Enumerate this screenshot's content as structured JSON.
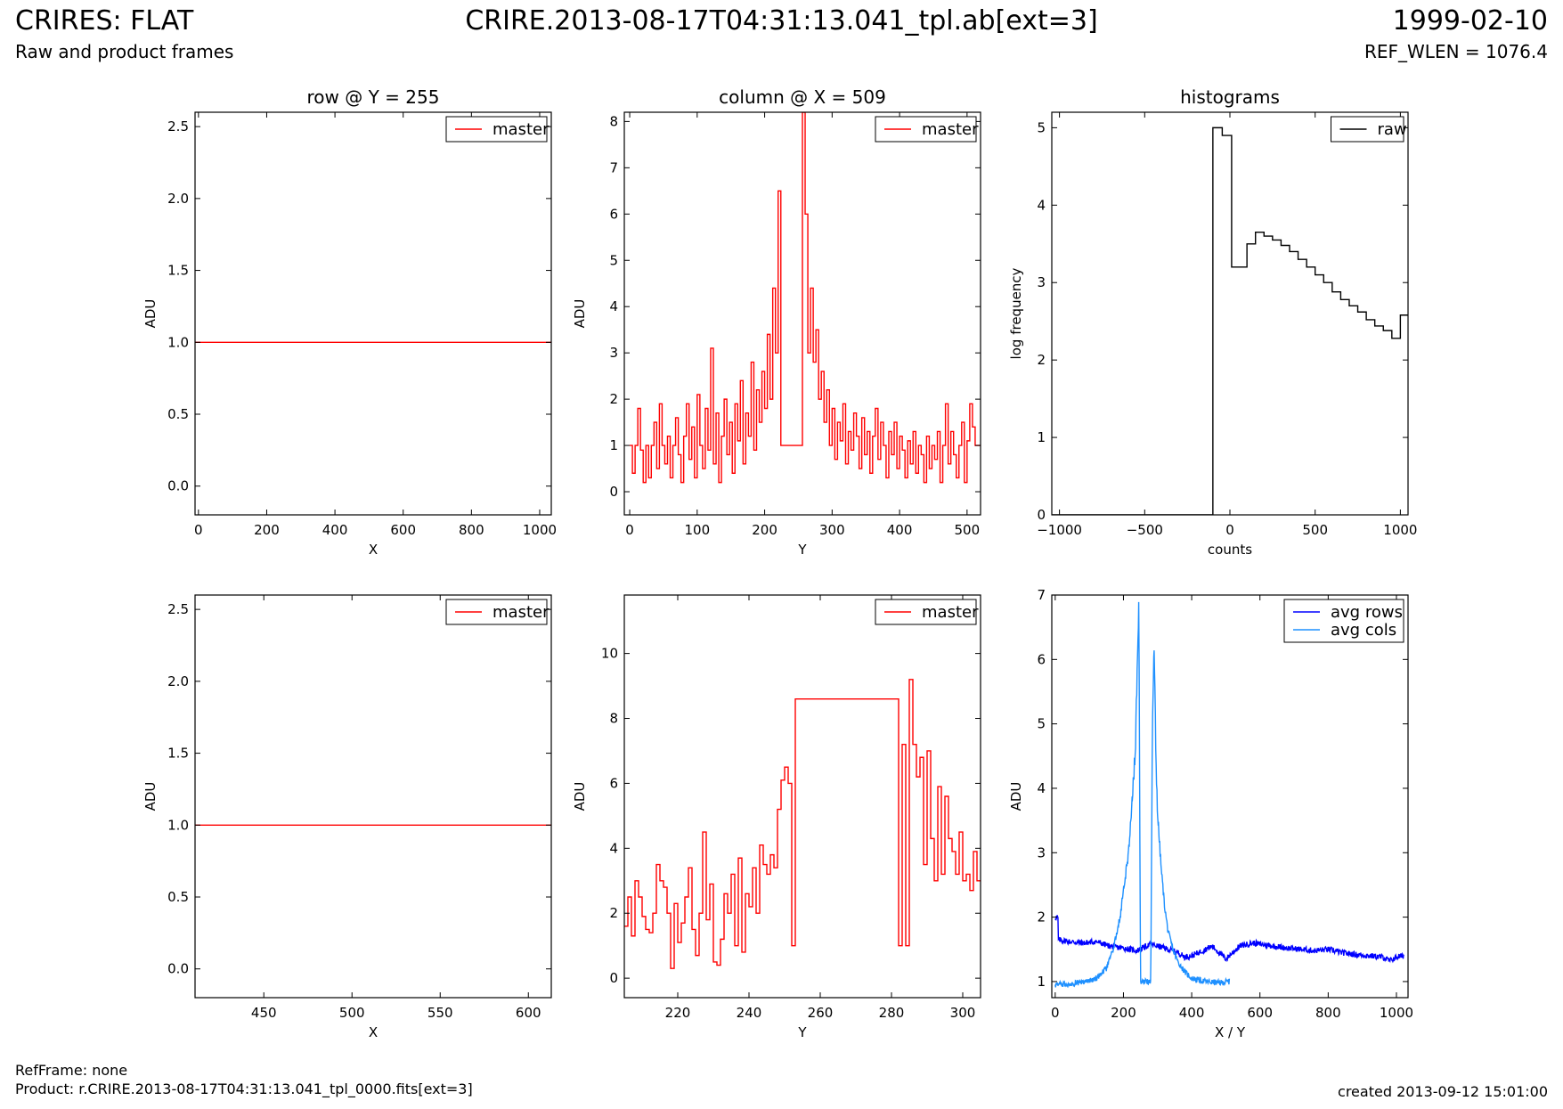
{
  "header": {
    "title_left": "CRIRES: FLAT",
    "subtitle_left": "Raw and product frames",
    "title_center": "CRIRE.2013-08-17T04:31:13.041_tpl.ab[ext=3]",
    "title_right": "1999-02-10",
    "subtitle_right": "REF_WLEN = 1076.4"
  },
  "footer": {
    "refframe": "RefFrame: none",
    "product": "Product: r.CRIRE.2013-08-17T04:31:13.041_tpl_0000.fits[ext=3]",
    "created": "created 2013-09-12 15:01:00"
  },
  "colors": {
    "red": "#ff0000",
    "black": "#000000",
    "blue": "#0000ff",
    "light_blue": "#1e90ff"
  },
  "chart_data": [
    {
      "type": "line",
      "title": "row @ Y = 255",
      "xlabel": "X",
      "ylabel": "ADU",
      "xlim": [
        -10,
        1034
      ],
      "ylim": [
        -0.2,
        2.6
      ],
      "xticks": [
        0,
        200,
        400,
        600,
        800,
        1000
      ],
      "xticklabels": [
        "0",
        "200",
        "400",
        "600",
        "800",
        "1000"
      ],
      "yticks": [
        0,
        0.5,
        1,
        1.5,
        2,
        2.5
      ],
      "yticklabels": [
        "0.0",
        "0.5",
        "1.0",
        "1.5",
        "2.0",
        "2.5"
      ],
      "legend_position": "upper-right",
      "series": [
        {
          "name": "master",
          "color": "#ff0000",
          "style": "line",
          "x": [
            -10,
            1034
          ],
          "y": [
            1.0,
            1.0
          ]
        }
      ]
    },
    {
      "type": "line",
      "title": "column @ X = 509",
      "xlabel": "Y",
      "ylabel": "ADU",
      "xlim": [
        -8,
        520
      ],
      "ylim": [
        -0.5,
        8.2
      ],
      "xticks": [
        0,
        100,
        200,
        300,
        400,
        500
      ],
      "xticklabels": [
        "0",
        "100",
        "200",
        "300",
        "400",
        "500"
      ],
      "yticks": [
        0,
        1,
        2,
        3,
        4,
        5,
        6,
        7,
        8
      ],
      "yticklabels": [
        "0",
        "1",
        "2",
        "3",
        "4",
        "5",
        "6",
        "7",
        "8"
      ],
      "legend_position": "upper-right",
      "series": [
        {
          "name": "master",
          "color": "#ff0000",
          "style": "steps",
          "x": [
            0,
            4,
            8,
            12,
            16,
            20,
            24,
            28,
            32,
            36,
            40,
            44,
            48,
            52,
            56,
            60,
            64,
            68,
            72,
            76,
            80,
            84,
            88,
            92,
            96,
            100,
            104,
            108,
            112,
            116,
            120,
            124,
            128,
            132,
            136,
            140,
            144,
            148,
            152,
            156,
            160,
            164,
            168,
            172,
            176,
            180,
            184,
            188,
            192,
            196,
            200,
            204,
            208,
            212,
            216,
            220,
            224,
            228,
            232,
            236,
            240,
            244,
            248,
            252,
            256,
            260,
            264,
            268,
            272,
            276,
            280,
            284,
            288,
            292,
            296,
            300,
            304,
            308,
            312,
            316,
            320,
            324,
            328,
            332,
            336,
            340,
            344,
            348,
            352,
            356,
            360,
            364,
            368,
            372,
            376,
            380,
            384,
            388,
            392,
            396,
            400,
            404,
            408,
            412,
            416,
            420,
            424,
            428,
            432,
            436,
            440,
            444,
            448,
            452,
            456,
            460,
            464,
            468,
            472,
            476,
            480,
            484,
            488,
            492,
            496,
            500,
            504,
            508,
            512
          ],
          "y": [
            1.0,
            0.4,
            1.0,
            1.8,
            0.9,
            0.2,
            1.0,
            0.3,
            1.0,
            1.5,
            0.5,
            1.9,
            1.0,
            0.6,
            1.2,
            0.3,
            1.0,
            1.6,
            0.8,
            0.2,
            1.2,
            1.9,
            0.7,
            1.4,
            0.3,
            2.1,
            1.0,
            0.5,
            1.8,
            0.9,
            3.1,
            0.6,
            1.7,
            0.2,
            1.2,
            2.0,
            0.8,
            1.5,
            0.4,
            1.9,
            1.1,
            2.4,
            0.6,
            1.7,
            1.2,
            2.8,
            0.9,
            2.2,
            1.5,
            2.6,
            1.8,
            3.4,
            2.0,
            4.4,
            3.0,
            6.5,
            1.0,
            1.0,
            1.0,
            1.0,
            1.0,
            1.0,
            1.0,
            1.0,
            8.2,
            6.0,
            3.0,
            4.4,
            2.8,
            3.5,
            2.0,
            2.6,
            1.5,
            2.2,
            1.0,
            1.8,
            0.7,
            1.5,
            1.1,
            1.9,
            0.6,
            1.3,
            0.9,
            1.7,
            1.2,
            0.5,
            1.6,
            0.8,
            1.3,
            0.4,
            1.2,
            1.8,
            0.7,
            1.5,
            1.0,
            0.3,
            1.3,
            0.8,
            1.5,
            0.5,
            1.2,
            0.9,
            0.3,
            1.1,
            0.6,
            1.3,
            0.4,
            1.0,
            0.8,
            0.2,
            1.2,
            0.5,
            1.0,
            0.7,
            1.3,
            0.2,
            1.0,
            1.9,
            0.6,
            1.3,
            0.8,
            0.3,
            1.0,
            1.5,
            0.2,
            1.1,
            1.9,
            1.4,
            1.0
          ]
        }
      ]
    },
    {
      "type": "line",
      "title": "histograms",
      "xlabel": "counts",
      "ylabel": "log frequency",
      "xlim": [
        -1045,
        1045
      ],
      "ylim": [
        0,
        5.2
      ],
      "xticks": [
        -1000,
        -500,
        0,
        500,
        1000
      ],
      "xticklabels": [
        "−1000",
        "−500",
        "0",
        "500",
        "1000"
      ],
      "yticks": [
        0,
        1,
        2,
        3,
        4,
        5
      ],
      "yticklabels": [
        "0",
        "1",
        "2",
        "3",
        "4",
        "5"
      ],
      "legend_position": "upper-right",
      "series": [
        {
          "name": "raw",
          "color": "#000000",
          "style": "steps",
          "x": [
            -1045,
            -100,
            -45,
            10,
            50,
            100,
            150,
            200,
            250,
            300,
            350,
            400,
            450,
            500,
            550,
            600,
            650,
            700,
            750,
            800,
            850,
            900,
            950,
            1000,
            1045
          ],
          "y": [
            0,
            5.0,
            4.9,
            3.2,
            3.2,
            3.5,
            3.65,
            3.6,
            3.55,
            3.48,
            3.4,
            3.3,
            3.2,
            3.1,
            3.0,
            2.88,
            2.78,
            2.7,
            2.62,
            2.52,
            2.44,
            2.38,
            2.28,
            2.58,
            2.58
          ]
        }
      ]
    },
    {
      "type": "line",
      "xlabel": "X",
      "ylabel": "ADU",
      "xlim": [
        411,
        613
      ],
      "ylim": [
        -0.2,
        2.6
      ],
      "xticks": [
        450,
        500,
        550,
        600
      ],
      "xticklabels": [
        "450",
        "500",
        "550",
        "600"
      ],
      "yticks": [
        0,
        0.5,
        1,
        1.5,
        2,
        2.5
      ],
      "yticklabels": [
        "0.0",
        "0.5",
        "1.0",
        "1.5",
        "2.0",
        "2.5"
      ],
      "legend_position": "upper-right",
      "series": [
        {
          "name": "master",
          "color": "#ff0000",
          "style": "line",
          "x": [
            411,
            613
          ],
          "y": [
            1.0,
            1.0
          ]
        }
      ]
    },
    {
      "type": "line",
      "xlabel": "Y",
      "ylabel": "ADU",
      "xlim": [
        205,
        305
      ],
      "ylim": [
        -0.6,
        11.8
      ],
      "xticks": [
        220,
        240,
        260,
        280,
        300
      ],
      "xticklabels": [
        "220",
        "240",
        "260",
        "280",
        "300"
      ],
      "yticks": [
        0,
        2,
        4,
        6,
        8,
        10
      ],
      "yticklabels": [
        "0",
        "2",
        "4",
        "6",
        "8",
        "10"
      ],
      "legend_position": "upper-right",
      "series": [
        {
          "name": "master",
          "color": "#ff0000",
          "style": "steps",
          "x": [
            205,
            206,
            207,
            208,
            209,
            210,
            211,
            212,
            213,
            214,
            215,
            216,
            217,
            218,
            219,
            220,
            221,
            222,
            223,
            224,
            225,
            226,
            227,
            228,
            229,
            230,
            231,
            232,
            233,
            234,
            235,
            236,
            237,
            238,
            239,
            240,
            241,
            242,
            243,
            244,
            245,
            246,
            247,
            248,
            249,
            250,
            251,
            252,
            253,
            282,
            283,
            284,
            285,
            286,
            287,
            288,
            289,
            290,
            291,
            292,
            293,
            294,
            295,
            296,
            297,
            298,
            299,
            300,
            301,
            302,
            303,
            304,
            305
          ],
          "y": [
            1.6,
            2.5,
            1.3,
            3.0,
            2.5,
            1.9,
            1.5,
            1.4,
            2.0,
            3.5,
            3.0,
            2.8,
            2.0,
            0.3,
            2.3,
            1.1,
            1.7,
            2.5,
            3.4,
            1.5,
            0.7,
            2.0,
            4.5,
            1.8,
            2.9,
            0.5,
            0.4,
            1.2,
            2.6,
            2.0,
            3.2,
            1.0,
            3.7,
            0.8,
            2.6,
            2.2,
            3.4,
            2.0,
            4.1,
            3.5,
            3.2,
            3.8,
            3.4,
            5.2,
            6.1,
            6.5,
            6.0,
            1.0,
            8.6,
            1.0,
            7.2,
            1.0,
            9.2,
            7.2,
            6.2,
            6.8,
            3.5,
            7.0,
            4.3,
            3.0,
            5.9,
            3.2,
            5.6,
            4.3,
            3.9,
            3.2,
            4.5,
            3.0,
            3.2,
            2.7,
            3.9,
            3.0,
            3.0
          ]
        }
      ]
    },
    {
      "type": "line",
      "xlabel": "X / Y",
      "ylabel": "ADU",
      "xlim": [
        -10,
        1034
      ],
      "ylim": [
        0.75,
        7.0
      ],
      "xticks": [
        0,
        200,
        400,
        600,
        800,
        1000
      ],
      "xticklabels": [
        "0",
        "200",
        "400",
        "600",
        "800",
        "1000"
      ],
      "yticks": [
        1,
        2,
        3,
        4,
        5,
        6,
        7
      ],
      "yticklabels": [
        "1",
        "2",
        "3",
        "4",
        "5",
        "6",
        "7"
      ],
      "legend_position": "upper-right",
      "series": [
        {
          "name": "avg rows",
          "color": "#0000ff",
          "style": "noisy",
          "x": [
            0,
            8,
            9,
            40,
            80,
            120,
            160,
            200,
            240,
            280,
            320,
            360,
            380,
            400,
            440,
            460,
            480,
            500,
            540,
            580,
            600,
            640,
            680,
            720,
            760,
            800,
            840,
            880,
            920,
            960,
            980,
            1000,
            1023
          ],
          "y": [
            2.0,
            2.0,
            1.65,
            1.62,
            1.6,
            1.62,
            1.55,
            1.52,
            1.48,
            1.58,
            1.52,
            1.45,
            1.38,
            1.4,
            1.5,
            1.55,
            1.45,
            1.35,
            1.55,
            1.6,
            1.58,
            1.55,
            1.52,
            1.5,
            1.48,
            1.5,
            1.45,
            1.42,
            1.4,
            1.38,
            1.32,
            1.38,
            1.4
          ]
        },
        {
          "name": "avg cols",
          "color": "#1e90ff",
          "style": "noisy",
          "x": [
            0,
            30,
            60,
            90,
            120,
            150,
            170,
            190,
            205,
            215,
            225,
            235,
            240,
            245,
            250,
            255,
            260,
            265,
            270,
            280,
            285,
            290,
            295,
            300,
            310,
            320,
            330,
            345,
            360,
            380,
            400,
            440,
            480,
            511
          ],
          "y": [
            0.95,
            0.96,
            0.98,
            1.0,
            1.05,
            1.2,
            1.5,
            2.0,
            2.6,
            3.0,
            3.8,
            4.6,
            5.8,
            7.0,
            1.0,
            1.0,
            1.0,
            1.0,
            1.0,
            1.0,
            5.0,
            6.3,
            4.5,
            3.6,
            2.8,
            2.2,
            1.8,
            1.5,
            1.3,
            1.15,
            1.05,
            1.0,
            0.98,
            1.0
          ]
        }
      ]
    }
  ]
}
